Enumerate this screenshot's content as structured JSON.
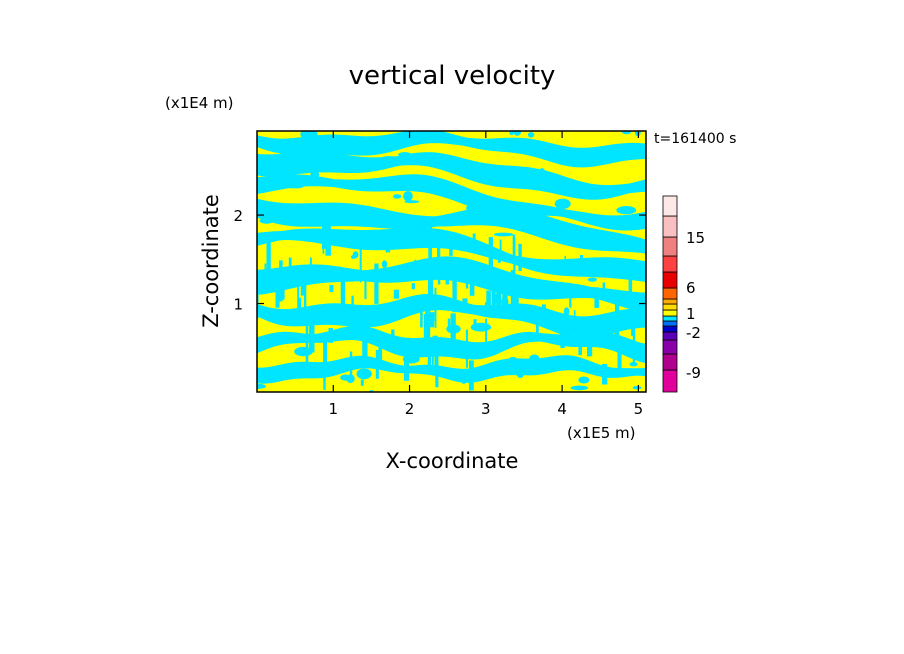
{
  "chart_data": {
    "type": "heatmap",
    "title": "vertical velocity",
    "xlabel": "X-coordinate",
    "ylabel": "Z-coordinate",
    "x_unit": "(x1E5 m)",
    "y_unit": "(x1E4 m)",
    "time_label": "t=161400 s",
    "xlim": [
      0,
      5.1
    ],
    "ylim": [
      0,
      2.95
    ],
    "x_ticks": [
      1,
      2,
      3,
      4,
      5
    ],
    "y_ticks": [
      1,
      2
    ],
    "grid": false,
    "colors": {
      "positive": "#ffff00",
      "negative": "#00e5ff",
      "frame": "#000000"
    },
    "colorbar": {
      "levels_bottom_to_top": [
        {
          "color": "#e0009c"
        },
        {
          "color": "#b0008e"
        },
        {
          "color": "#8a00a8"
        },
        {
          "color": "#5c00b8"
        },
        {
          "color": "#0000cc"
        },
        {
          "color": "#0070ff"
        },
        {
          "color": "#00e5ff"
        },
        {
          "color": "#ffff00"
        },
        {
          "color": "#ffdd00"
        },
        {
          "color": "#ffaa00"
        },
        {
          "color": "#ff6600"
        },
        {
          "color": "#e80000"
        },
        {
          "color": "#ff4040"
        },
        {
          "color": "#f08080"
        },
        {
          "color": "#f8c0c0"
        },
        {
          "color": "#fde8e8"
        }
      ],
      "tick_labels": [
        "15",
        "6",
        "1",
        "-2",
        "-9"
      ]
    }
  }
}
